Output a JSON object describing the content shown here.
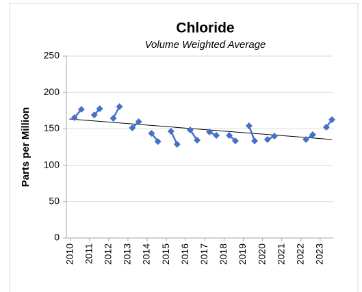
{
  "chart_data": {
    "type": "line",
    "title": "Chloride",
    "subtitle": "Volume Weighted Average",
    "y_label": "Parts per Million",
    "xlim": [
      2009.8,
      2023.68
    ],
    "xticks": [
      2010,
      2011,
      2012,
      2013,
      2014,
      2015,
      2016,
      2017,
      2018,
      2019,
      2020,
      2021,
      2022,
      2023
    ],
    "ylim": [
      0,
      250
    ],
    "yticks": [
      0,
      50,
      100,
      150,
      200,
      250
    ],
    "grid": true,
    "series": [
      {
        "color": "#4472c4",
        "x": [
          2010.22,
          2010.58,
          null,
          2011.25,
          2011.53,
          null,
          2012.24,
          2012.56,
          null,
          2013.23,
          2013.56,
          null,
          2014.23,
          2014.56,
          null,
          2015.24,
          2015.56,
          null,
          2016.24,
          2016.6,
          null,
          2017.24,
          2017.6,
          null,
          2018.27,
          2018.59,
          null,
          2019.3,
          2019.59,
          null,
          2020.26,
          2020.62,
          null,
          2022.26,
          2022.61,
          null,
          2023.32,
          2023.61
        ],
        "values": [
          165.4,
          176.7,
          null,
          169,
          177.6,
          null,
          164.5,
          180.5,
          null,
          151.3,
          159.8,
          null,
          143.8,
          132.5,
          null,
          146.6,
          128.8,
          null,
          148.5,
          134.4,
          null,
          145.7,
          141,
          null,
          141,
          133.5,
          null,
          154.1,
          133.5,
          null,
          135.3,
          140,
          null,
          135.3,
          141.9,
          null,
          152.3,
          162.6
        ]
      }
    ],
    "trendline": {
      "color": "#000000",
      "x": [
        2009.95,
        2023.61
      ],
      "values": [
        163.5,
        135.3
      ]
    }
  }
}
